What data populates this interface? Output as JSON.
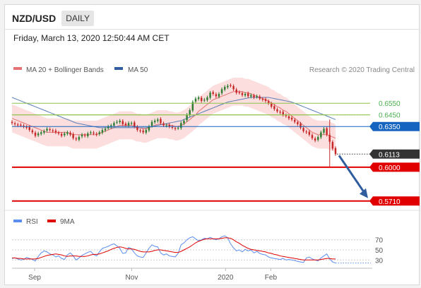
{
  "header": {
    "symbol": "NZD/USD",
    "timeframe": "DAILY"
  },
  "timestamp": "Friday, March 13, 2020 12:50:44 AM CET",
  "legend": {
    "ma20": "MA 20 + Bollinger Bands",
    "ma50": "MA 50"
  },
  "copyright": "Research © 2020 Trading Central",
  "colors": {
    "bull": "#2e7d32",
    "bear": "#c62828",
    "ma20": "#e57373",
    "band_fill": "#fbd3d3",
    "ma50": "#5a7fb8",
    "resistance": "#8bc34a",
    "pivot": "#1565c0",
    "support": "#e00000",
    "last": "#333333",
    "arrow": "#2f5d9e",
    "rsi": "#5b8def",
    "rsi_ma": "#e00000"
  },
  "chart_data": [
    {
      "type": "candlestick",
      "title": "NZD/USD DAILY",
      "x_labels": [
        "Sep",
        "Nov",
        "2020",
        "Feb"
      ],
      "ylim": [
        0.566,
        0.68
      ],
      "close": [
        0.638,
        0.637,
        0.636,
        0.636,
        0.635,
        0.634,
        0.632,
        0.63,
        0.627,
        0.629,
        0.63,
        0.631,
        0.633,
        0.632,
        0.631,
        0.63,
        0.629,
        0.627,
        0.629,
        0.63,
        0.628,
        0.625,
        0.624,
        0.626,
        0.628,
        0.627,
        0.629,
        0.63,
        0.629,
        0.628,
        0.63,
        0.632,
        0.633,
        0.635,
        0.636,
        0.638,
        0.639,
        0.64,
        0.637,
        0.636,
        0.638,
        0.638,
        0.635,
        0.632,
        0.631,
        0.63,
        0.632,
        0.635,
        0.639,
        0.64,
        0.641,
        0.638,
        0.636,
        0.636,
        0.635,
        0.634,
        0.633,
        0.634,
        0.638,
        0.64,
        0.645,
        0.649,
        0.656,
        0.659,
        0.66,
        0.657,
        0.658,
        0.66,
        0.664,
        0.663,
        0.661,
        0.663,
        0.667,
        0.669,
        0.67,
        0.67,
        0.667,
        0.664,
        0.664,
        0.662,
        0.663,
        0.661,
        0.662,
        0.66,
        0.661,
        0.659,
        0.658,
        0.657,
        0.655,
        0.652,
        0.65,
        0.648,
        0.647,
        0.645,
        0.644,
        0.642,
        0.641,
        0.639,
        0.637,
        0.634,
        0.631,
        0.63,
        0.628,
        0.625,
        0.623,
        0.626,
        0.63,
        0.633,
        0.628,
        0.622,
        0.616,
        0.6113
      ],
      "ma20": [
        0.642,
        0.641,
        0.64,
        0.639,
        0.638,
        0.637,
        0.636,
        0.635,
        0.634,
        0.633,
        0.632,
        0.631,
        0.63,
        0.63,
        0.63,
        0.63,
        0.63,
        0.63,
        0.63,
        0.63,
        0.629,
        0.628,
        0.628,
        0.628,
        0.628,
        0.628,
        0.628,
        0.628,
        0.628,
        0.628,
        0.629,
        0.63,
        0.631,
        0.632,
        0.633,
        0.634,
        0.635,
        0.636,
        0.636,
        0.636,
        0.636,
        0.636,
        0.635,
        0.634,
        0.634,
        0.633,
        0.633,
        0.634,
        0.635,
        0.636,
        0.637,
        0.637,
        0.637,
        0.637,
        0.636,
        0.636,
        0.635,
        0.635,
        0.636,
        0.637,
        0.639,
        0.641,
        0.643,
        0.645,
        0.648,
        0.65,
        0.652,
        0.654,
        0.656,
        0.658,
        0.659,
        0.66,
        0.661,
        0.662,
        0.663,
        0.664,
        0.665,
        0.665,
        0.665,
        0.665,
        0.664,
        0.664,
        0.663,
        0.662,
        0.661,
        0.66,
        0.659,
        0.658,
        0.657,
        0.655,
        0.654,
        0.652,
        0.651,
        0.649,
        0.648,
        0.646,
        0.644,
        0.642,
        0.64,
        0.638,
        0.636,
        0.634,
        0.632,
        0.63,
        0.629,
        0.628,
        0.628,
        0.628,
        0.628,
        0.627,
        0.626,
        0.625
      ],
      "ma50": [
        0.66,
        0.659,
        0.658,
        0.657,
        0.656,
        0.655,
        0.654,
        0.653,
        0.652,
        0.651,
        0.65,
        0.649,
        0.648,
        0.647,
        0.646,
        0.645,
        0.644,
        0.643,
        0.642,
        0.641,
        0.64,
        0.639,
        0.638,
        0.6375,
        0.637,
        0.6365,
        0.636,
        0.6355,
        0.635,
        0.6345,
        0.634,
        0.634,
        0.634,
        0.634,
        0.634,
        0.634,
        0.634,
        0.634,
        0.634,
        0.634,
        0.634,
        0.634,
        0.634,
        0.634,
        0.634,
        0.634,
        0.634,
        0.6345,
        0.635,
        0.6355,
        0.636,
        0.6365,
        0.637,
        0.6375,
        0.638,
        0.6385,
        0.639,
        0.6395,
        0.64,
        0.641,
        0.642,
        0.643,
        0.644,
        0.645,
        0.646,
        0.647,
        0.648,
        0.649,
        0.65,
        0.651,
        0.652,
        0.653,
        0.654,
        0.655,
        0.656,
        0.6565,
        0.657,
        0.6575,
        0.658,
        0.6585,
        0.659,
        0.6595,
        0.66,
        0.66,
        0.66,
        0.66,
        0.66,
        0.66,
        0.66,
        0.6595,
        0.659,
        0.6585,
        0.658,
        0.6575,
        0.657,
        0.6565,
        0.656,
        0.655,
        0.654,
        0.653,
        0.652,
        0.651,
        0.65,
        0.649,
        0.648,
        0.647,
        0.646,
        0.645,
        0.644,
        0.643,
        0.642,
        0.641
      ],
      "band_halfwidth": 0.012,
      "levels": [
        {
          "label": "0.6550",
          "value": 0.655,
          "kind": "resistance",
          "style": "solid-short"
        },
        {
          "label": "0.6450",
          "value": 0.645,
          "kind": "resistance",
          "style": "dotted"
        },
        {
          "label": "0.6350",
          "value": 0.635,
          "kind": "pivot",
          "style": "solid"
        },
        {
          "label": "0.6113",
          "value": 0.6113,
          "kind": "last",
          "style": "dotted"
        },
        {
          "label": "0.6000",
          "value": 0.6,
          "kind": "support",
          "style": "solid"
        },
        {
          "label": "0.5710",
          "value": 0.571,
          "kind": "support",
          "style": "solid"
        }
      ],
      "projection": {
        "from": 0.6113,
        "to": 0.571
      }
    },
    {
      "type": "line",
      "title": "RSI",
      "y_ticks": [
        "70",
        "50",
        "30"
      ],
      "ylim": [
        15,
        85
      ],
      "series": [
        {
          "name": "RSI",
          "values": [
            33,
            34,
            32,
            30,
            31,
            35,
            33,
            31,
            28,
            37,
            44,
            48,
            46,
            42,
            40,
            36,
            38,
            33,
            31,
            40,
            44,
            38,
            30,
            34,
            39,
            42,
            45,
            47,
            41,
            38,
            46,
            53,
            55,
            57,
            60,
            62,
            58,
            53,
            43,
            44,
            55,
            52,
            44,
            38,
            36,
            35,
            44,
            53,
            60,
            57,
            56,
            44,
            40,
            42,
            38,
            37,
            36,
            43,
            60,
            64,
            70,
            74,
            76,
            72,
            68,
            70,
            73,
            72,
            75,
            72,
            70,
            72,
            76,
            78,
            74,
            62,
            54,
            48,
            50,
            46,
            51,
            48,
            50,
            44,
            47,
            43,
            41,
            40,
            36,
            34,
            33,
            32,
            31,
            33,
            30,
            31,
            30,
            29,
            27,
            26,
            25,
            34,
            36,
            32,
            30,
            28,
            34,
            38,
            42,
            32,
            26,
            24
          ]
        },
        {
          "name": "9MA",
          "values": [
            34,
            34,
            33,
            33,
            32,
            32,
            32,
            32,
            32,
            33,
            35,
            37,
            39,
            40,
            41,
            42,
            41,
            40,
            38,
            37,
            38,
            38,
            38,
            37,
            37,
            37,
            38,
            40,
            41,
            41,
            42,
            44,
            46,
            48,
            51,
            53,
            55,
            56,
            55,
            53,
            52,
            52,
            51,
            49,
            47,
            46,
            46,
            46,
            47,
            49,
            50,
            50,
            49,
            48,
            47,
            46,
            45,
            45,
            47,
            50,
            53,
            56,
            60,
            64,
            67,
            69,
            71,
            72,
            72,
            72,
            72,
            72,
            73,
            74,
            74,
            73,
            70,
            66,
            63,
            59,
            56,
            53,
            51,
            50,
            49,
            48,
            47,
            46,
            44,
            43,
            41,
            40,
            38,
            37,
            36,
            35,
            34,
            33,
            32,
            31,
            30,
            30,
            30,
            30,
            30,
            30,
            31,
            32,
            33,
            33,
            32,
            32
          ]
        }
      ]
    }
  ]
}
